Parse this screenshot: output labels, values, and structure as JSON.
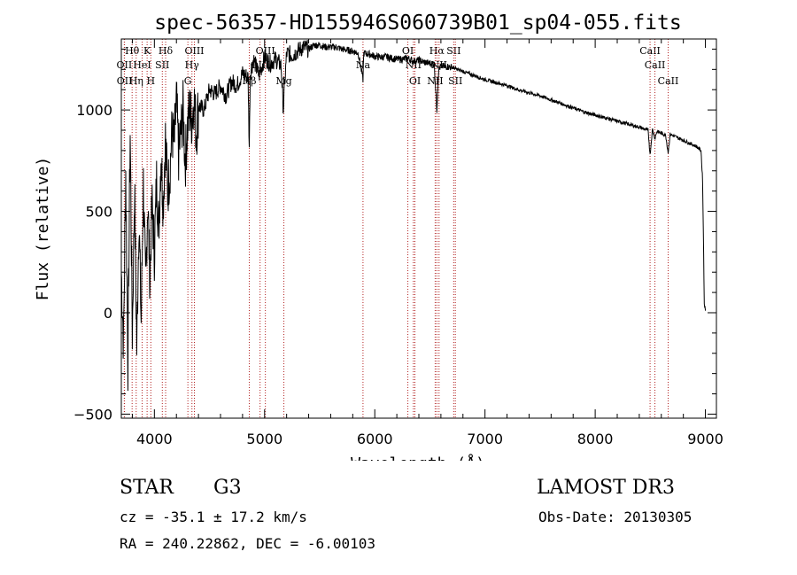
{
  "chart_data": {
    "type": "line",
    "title": "spec-56357-HD155946S060739B01_sp04-055.fits",
    "xlabel": "Wavelength (Å)",
    "ylabel": "Flux (relative)",
    "xlim": [
      3700,
      9100
    ],
    "ylim": [
      -520,
      1350
    ],
    "x_ticks": [
      4000,
      5000,
      6000,
      7000,
      8000,
      9000
    ],
    "y_ticks": [
      -500,
      0,
      500,
      1000
    ],
    "grid": false,
    "series": [
      {
        "name": "spectrum",
        "x": [
          3700,
          3720,
          3740,
          3760,
          3780,
          3800,
          3820,
          3840,
          3860,
          3880,
          3900,
          3920,
          3940,
          3960,
          3970,
          3980,
          4000,
          4020,
          4040,
          4060,
          4080,
          4100,
          4120,
          4140,
          4160,
          4180,
          4200,
          4220,
          4240,
          4260,
          4280,
          4300,
          4320,
          4340,
          4360,
          4380,
          4400,
          4450,
          4500,
          4550,
          4600,
          4650,
          4700,
          4750,
          4800,
          4850,
          4861,
          4870,
          4900,
          4950,
          5000,
          5050,
          5100,
          5150,
          5170,
          5183,
          5200,
          5250,
          5300,
          5350,
          5400,
          5450,
          5500,
          5550,
          5600,
          5650,
          5700,
          5750,
          5800,
          5850,
          5893,
          5900,
          5950,
          6000,
          6050,
          6100,
          6150,
          6200,
          6250,
          6300,
          6350,
          6400,
          6450,
          6500,
          6540,
          6563,
          6580,
          6600,
          6650,
          6700,
          6750,
          6800,
          6850,
          6900,
          6950,
          7000,
          7100,
          7200,
          7300,
          7400,
          7500,
          7600,
          7700,
          7800,
          7900,
          8000,
          8100,
          8200,
          8300,
          8400,
          8480,
          8498,
          8520,
          8542,
          8560,
          8600,
          8640,
          8662,
          8680,
          8720,
          8760,
          8800,
          8840,
          8880,
          8920,
          8960,
          8975,
          8990,
          9000
        ],
        "values": [
          200,
          -150,
          700,
          -250,
          900,
          -100,
          620,
          -180,
          480,
          -50,
          640,
          120,
          560,
          160,
          380,
          520,
          300,
          650,
          420,
          780,
          540,
          860,
          600,
          700,
          900,
          820,
          1050,
          780,
          880,
          1000,
          740,
          920,
          1000,
          950,
          1060,
          880,
          1020,
          1000,
          1100,
          1080,
          1120,
          1070,
          1140,
          1120,
          1180,
          1160,
          820,
          1180,
          1250,
          1170,
          1260,
          1230,
          1250,
          1220,
          1000,
          1130,
          1280,
          1270,
          1290,
          1310,
          1300,
          1320,
          1320,
          1310,
          1310,
          1310,
          1300,
          1295,
          1290,
          1280,
          1150,
          1280,
          1275,
          1265,
          1260,
          1262,
          1255,
          1250,
          1250,
          1255,
          1240,
          1245,
          1235,
          1230,
          1225,
          1000,
          1200,
          1215,
          1215,
          1210,
          1200,
          1190,
          1180,
          1170,
          1160,
          1150,
          1135,
          1120,
          1100,
          1085,
          1070,
          1050,
          1030,
          1010,
          990,
          975,
          960,
          945,
          930,
          915,
          900,
          780,
          905,
          860,
          895,
          885,
          875,
          790,
          880,
          870,
          860,
          850,
          840,
          830,
          820,
          800,
          650,
          50,
          10
        ]
      }
    ],
    "lines": [
      {
        "name": "Hθ",
        "wavelength": 3798,
        "row": 1
      },
      {
        "name": "OII",
        "wavelength": 3727,
        "row": 2
      },
      {
        "name": "OII",
        "wavelength": 3729,
        "row": 3
      },
      {
        "name": "K",
        "wavelength": 3934,
        "row": 1
      },
      {
        "name": "HeI",
        "wavelength": 3889,
        "row": 2
      },
      {
        "name": "Hη",
        "wavelength": 3835,
        "row": 3
      },
      {
        "name": "Hδ",
        "wavelength": 4102,
        "row": 1
      },
      {
        "name": "SII",
        "wavelength": 4072,
        "row": 2
      },
      {
        "name": "H",
        "wavelength": 3968,
        "row": 3
      },
      {
        "name": "OIII",
        "wavelength": 4363,
        "row": 1
      },
      {
        "name": "Hγ",
        "wavelength": 4341,
        "row": 2
      },
      {
        "name": "G",
        "wavelength": 4304,
        "row": 3
      },
      {
        "name": "OIII",
        "wavelength": 5007,
        "row": 1
      },
      {
        "name": "OIII",
        "wavelength": 4959,
        "row": 2
      },
      {
        "name": "Hβ",
        "wavelength": 4861,
        "row": 3
      },
      {
        "name": "Mg",
        "wavelength": 5175,
        "row": 3
      },
      {
        "name": "Na",
        "wavelength": 5893,
        "row": 2
      },
      {
        "name": "OI",
        "wavelength": 6300,
        "row": 1
      },
      {
        "name": "NII",
        "wavelength": 6350,
        "row": 2
      },
      {
        "name": "OI",
        "wavelength": 6364,
        "row": 3
      },
      {
        "name": "Hα",
        "wavelength": 6563,
        "row": 1
      },
      {
        "name": "SII",
        "wavelength": 6716,
        "row": 1
      },
      {
        "name": "NII",
        "wavelength": 6583,
        "row": 2
      },
      {
        "name": "NII",
        "wavelength": 6548,
        "row": 3
      },
      {
        "name": "SII",
        "wavelength": 6731,
        "row": 3
      },
      {
        "name": "CaII",
        "wavelength": 8498,
        "row": 1
      },
      {
        "name": "CaII",
        "wavelength": 8542,
        "row": 2
      },
      {
        "name": "CaII",
        "wavelength": 8662,
        "row": 3
      }
    ]
  },
  "info": {
    "object_class": "STAR",
    "subclass": "G3",
    "survey": "LAMOST DR3",
    "cz": "cz = -35.1 ± 17.2 km/s",
    "obs_date": "Obs-Date: 20130305",
    "coords": "RA = 240.22862, DEC =  -6.00103"
  },
  "colors": {
    "axis": "#000000",
    "spectrum": "#000000",
    "line_marker": "#b22222"
  }
}
